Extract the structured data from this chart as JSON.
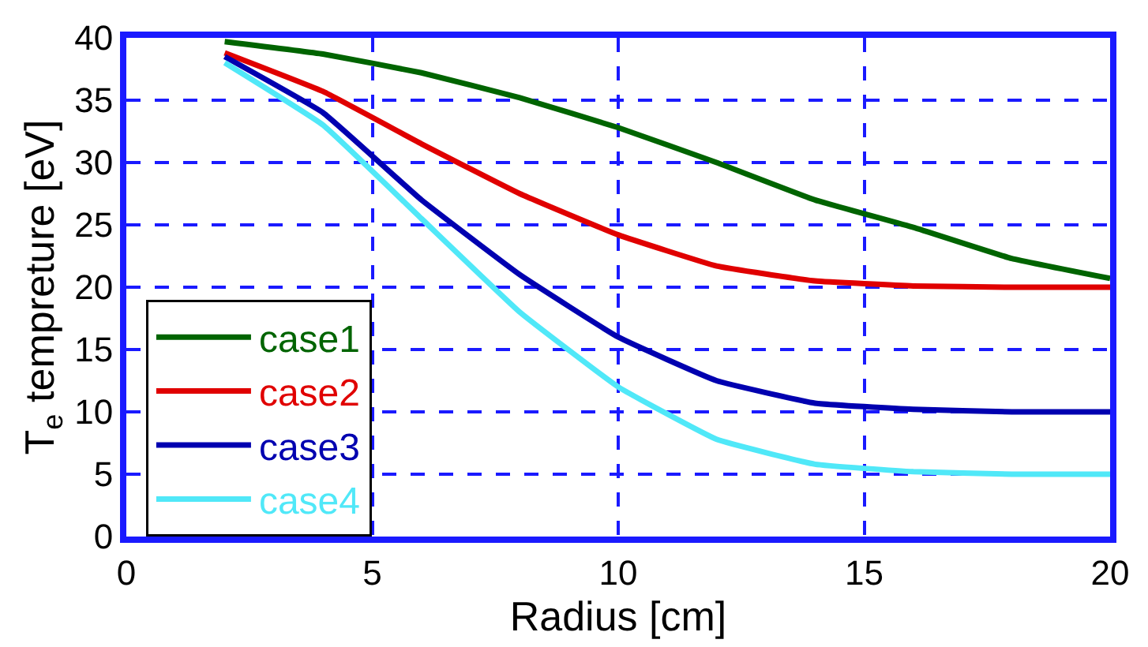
{
  "chart_data": {
    "type": "line",
    "xlabel": "Radius [cm]",
    "ylabel": "T$_{e}$ tempreture [eV]",
    "x": [
      2,
      4,
      6,
      8,
      10,
      12,
      14,
      16,
      18,
      20
    ],
    "xlim": [
      0,
      20
    ],
    "xticks": [
      0,
      5,
      10,
      15,
      20
    ],
    "ylim": [
      0,
      40
    ],
    "yticks": [
      0,
      5,
      10,
      15,
      20,
      25,
      30,
      35,
      40
    ],
    "grid": true,
    "legend": "bottom left",
    "marker": "none",
    "line_style": "solid",
    "series": [
      {
        "name": "case1",
        "color": "#006400",
        "values": [
          39.7,
          38.7,
          37.2,
          35.2,
          32.8,
          30,
          27,
          24.8,
          22.3,
          20.7
        ]
      },
      {
        "name": "case2",
        "color": "#e00000",
        "values": [
          38.8,
          35.7,
          31.5,
          27.5,
          24.2,
          21.7,
          20.5,
          20.1,
          20,
          20
        ]
      },
      {
        "name": "case3",
        "color": "#0000b0",
        "values": [
          38.5,
          34,
          27,
          21,
          16,
          12.5,
          10.7,
          10.2,
          10,
          10
        ]
      },
      {
        "name": "case4",
        "color": "#50e8f8",
        "values": [
          38,
          33,
          25.5,
          18,
          12,
          7.8,
          5.8,
          5.2,
          5,
          5
        ]
      }
    ]
  }
}
